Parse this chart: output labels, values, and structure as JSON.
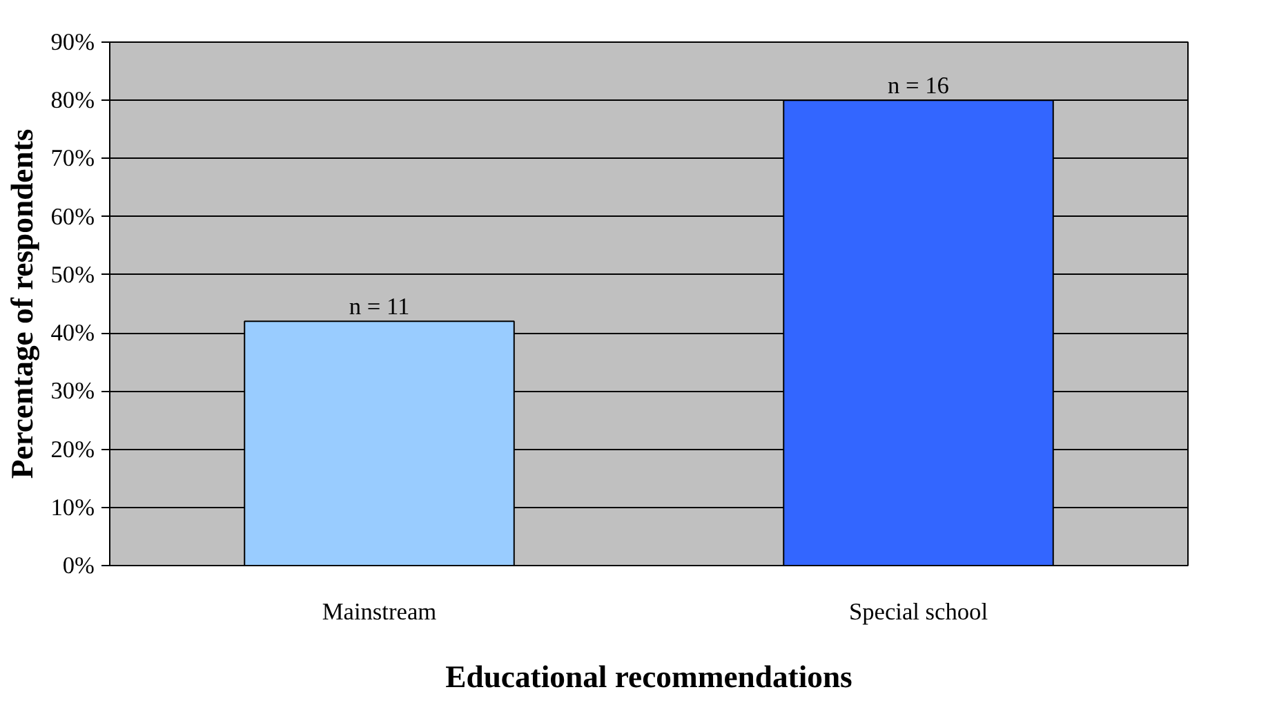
{
  "chart_data": {
    "type": "bar",
    "categories": [
      "Mainstream",
      "Special school"
    ],
    "values": [
      42,
      80
    ],
    "colors": [
      "#99ccff",
      "#3366ff"
    ],
    "annotations": [
      {
        "text": "n = 11",
        "x": "Mainstream",
        "y": 42
      },
      {
        "text": "n = 16",
        "x": "Special school",
        "y": 80
      }
    ],
    "xlabel": "Educational recommendations",
    "ylabel": "Percentage of respondents",
    "ylim": [
      0,
      90
    ],
    "yticks": [
      {
        "value": 0,
        "label": "0%"
      },
      {
        "value": 10,
        "label": "10%"
      },
      {
        "value": 20,
        "label": "20%"
      },
      {
        "value": 30,
        "label": "30%"
      },
      {
        "value": 40,
        "label": "40%"
      },
      {
        "value": 50,
        "label": "50%"
      },
      {
        "value": 60,
        "label": "60%"
      },
      {
        "value": 70,
        "label": "70%"
      },
      {
        "value": 80,
        "label": "80%"
      },
      {
        "value": 90,
        "label": "90%"
      }
    ],
    "grid": "y"
  }
}
